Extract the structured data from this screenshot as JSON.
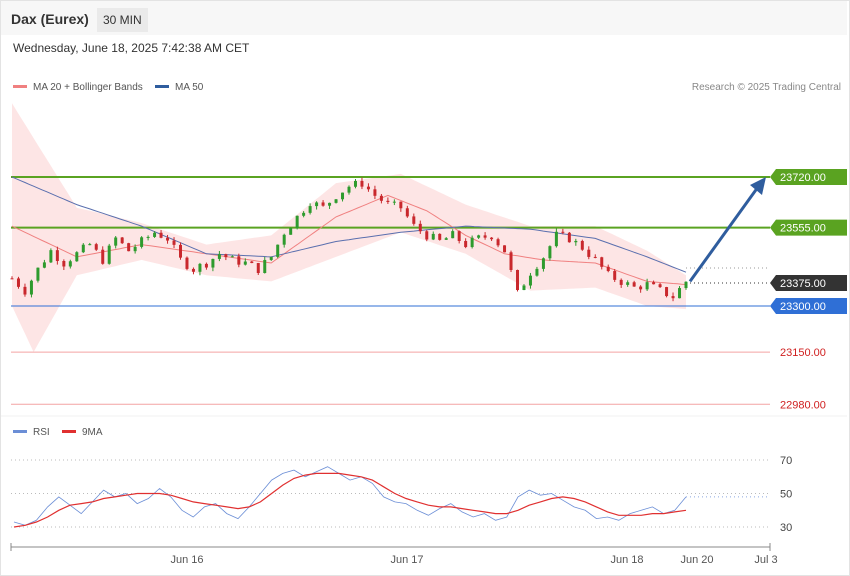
{
  "header": {
    "title": "Dax (Eurex)",
    "timeframe": "30 MIN",
    "datetime": "Wednesday, June 18, 2025 7:42:38 AM CET"
  },
  "legend": {
    "ma20_label": "MA 20 + Bollinger Bands",
    "ma50_label": "MA 50",
    "credit": "Research © 2025 Trading Central",
    "rsi_label": "RSI",
    "rsi_ma_label": "9MA"
  },
  "colors": {
    "bullish_candle": "#2e9b2e",
    "bearish_candle": "#c9282d",
    "bollinger_fill": "#fde0e0",
    "ma20": "#f08080",
    "ma50": "#5a6fae",
    "resistance": "#5aa321",
    "support": "#2f6fd6",
    "support_red": "#f4a3a3",
    "arrow": "#2f5d9e",
    "current_price_tag": "#333333",
    "rsi": "#6b8ed6",
    "rsi_ma": "#e03030"
  },
  "chart_data": [
    {
      "type": "candlestick",
      "title": "",
      "ylim": [
        22900,
        23800
      ],
      "x_labels": [
        "Jun 16",
        "Jun 17",
        "Jun 18",
        "Jun 20",
        "Jul 3"
      ],
      "levels": [
        {
          "value": 23720,
          "label": "23720.00",
          "kind": "resistance"
        },
        {
          "value": 23555,
          "label": "23555.00",
          "kind": "resistance"
        },
        {
          "value": 23375,
          "label": "23375.00",
          "kind": "current"
        },
        {
          "value": 23300,
          "label": "23300.00",
          "kind": "support"
        },
        {
          "value": 23150,
          "label": "23150.00",
          "kind": "support-red"
        },
        {
          "value": 22980,
          "label": "22980.00",
          "kind": "support-red"
        }
      ],
      "forecast_arrow": {
        "from": 23380,
        "to": 23720
      },
      "close_path": [
        [
          0,
          23390
        ],
        [
          3,
          23350
        ],
        [
          6,
          23420
        ],
        [
          9,
          23480
        ],
        [
          12,
          23440
        ],
        [
          15,
          23470
        ],
        [
          18,
          23500
        ],
        [
          21,
          23450
        ],
        [
          24,
          23520
        ],
        [
          27,
          23480
        ],
        [
          30,
          23510
        ],
        [
          33,
          23540
        ],
        [
          36,
          23520
        ],
        [
          39,
          23450
        ],
        [
          42,
          23420
        ],
        [
          45,
          23440
        ],
        [
          48,
          23470
        ],
        [
          51,
          23450
        ],
        [
          54,
          23440
        ],
        [
          57,
          23420
        ],
        [
          60,
          23460
        ],
        [
          63,
          23540
        ],
        [
          66,
          23590
        ],
        [
          69,
          23640
        ],
        [
          72,
          23620
        ],
        [
          75,
          23660
        ],
        [
          78,
          23690
        ],
        [
          81,
          23700
        ],
        [
          84,
          23660
        ],
        [
          87,
          23630
        ],
        [
          90,
          23620
        ],
        [
          93,
          23560
        ],
        [
          96,
          23530
        ],
        [
          99,
          23510
        ],
        [
          102,
          23530
        ],
        [
          105,
          23500
        ],
        [
          108,
          23520
        ],
        [
          111,
          23530
        ],
        [
          114,
          23480
        ],
        [
          117,
          23340
        ],
        [
          120,
          23410
        ],
        [
          123,
          23460
        ],
        [
          126,
          23530
        ],
        [
          129,
          23520
        ],
        [
          132,
          23490
        ],
        [
          135,
          23450
        ],
        [
          138,
          23400
        ],
        [
          141,
          23380
        ],
        [
          144,
          23360
        ],
        [
          147,
          23370
        ],
        [
          150,
          23350
        ],
        [
          153,
          23330
        ],
        [
          156,
          23380
        ]
      ],
      "bollinger": {
        "upper": [
          [
            0,
            23960
          ],
          [
            15,
            23620
          ],
          [
            30,
            23570
          ],
          [
            45,
            23500
          ],
          [
            60,
            23530
          ],
          [
            75,
            23700
          ],
          [
            90,
            23730
          ],
          [
            105,
            23630
          ],
          [
            120,
            23560
          ],
          [
            135,
            23560
          ],
          [
            147,
            23480
          ],
          [
            156,
            23400
          ]
        ],
        "lower": [
          [
            0,
            23300
          ],
          [
            5,
            23150
          ],
          [
            15,
            23400
          ],
          [
            30,
            23450
          ],
          [
            45,
            23400
          ],
          [
            60,
            23380
          ],
          [
            75,
            23460
          ],
          [
            90,
            23540
          ],
          [
            105,
            23470
          ],
          [
            120,
            23350
          ],
          [
            135,
            23360
          ],
          [
            147,
            23300
          ],
          [
            156,
            23290
          ]
        ]
      },
      "ma20": [
        [
          0,
          23560
        ],
        [
          15,
          23460
        ],
        [
          30,
          23500
        ],
        [
          45,
          23470
        ],
        [
          60,
          23440
        ],
        [
          75,
          23590
        ],
        [
          87,
          23660
        ],
        [
          96,
          23610
        ],
        [
          105,
          23530
        ],
        [
          114,
          23470
        ],
        [
          123,
          23450
        ],
        [
          135,
          23440
        ],
        [
          147,
          23380
        ],
        [
          156,
          23370
        ]
      ],
      "ma50": [
        [
          0,
          23720
        ],
        [
          15,
          23630
        ],
        [
          30,
          23560
        ],
        [
          45,
          23470
        ],
        [
          60,
          23460
        ],
        [
          75,
          23510
        ],
        [
          90,
          23540
        ],
        [
          105,
          23560
        ],
        [
          120,
          23550
        ],
        [
          135,
          23520
        ],
        [
          147,
          23460
        ],
        [
          156,
          23410
        ]
      ]
    },
    {
      "type": "line",
      "title": "",
      "ylim": [
        20,
        80
      ],
      "y_ticks": [
        70,
        50,
        30
      ],
      "series": [
        {
          "name": "RSI",
          "values": [
            33,
            31,
            34,
            42,
            48,
            43,
            38,
            45,
            52,
            48,
            50,
            44,
            47,
            53,
            48,
            40,
            36,
            42,
            44,
            38,
            35,
            42,
            50,
            58,
            62,
            64,
            60,
            63,
            66,
            62,
            58,
            60,
            56,
            48,
            45,
            44,
            40,
            37,
            41,
            44,
            39,
            36,
            38,
            34,
            36,
            48,
            52,
            49,
            50,
            46,
            42,
            40,
            35,
            36,
            34,
            38,
            40,
            42,
            38,
            40,
            48
          ]
        },
        {
          "name": "9MA",
          "values": [
            30,
            31,
            33,
            36,
            40,
            43,
            44,
            45,
            47,
            48,
            49,
            50,
            50,
            50,
            49,
            47,
            45,
            44,
            43,
            42,
            41,
            42,
            45,
            50,
            55,
            59,
            61,
            62,
            62,
            62,
            61,
            60,
            58,
            54,
            50,
            47,
            45,
            43,
            42,
            42,
            41,
            40,
            39,
            38,
            38,
            40,
            43,
            45,
            47,
            48,
            47,
            45,
            42,
            39,
            37,
            37,
            37,
            38,
            38,
            39,
            40
          ]
        }
      ]
    }
  ]
}
